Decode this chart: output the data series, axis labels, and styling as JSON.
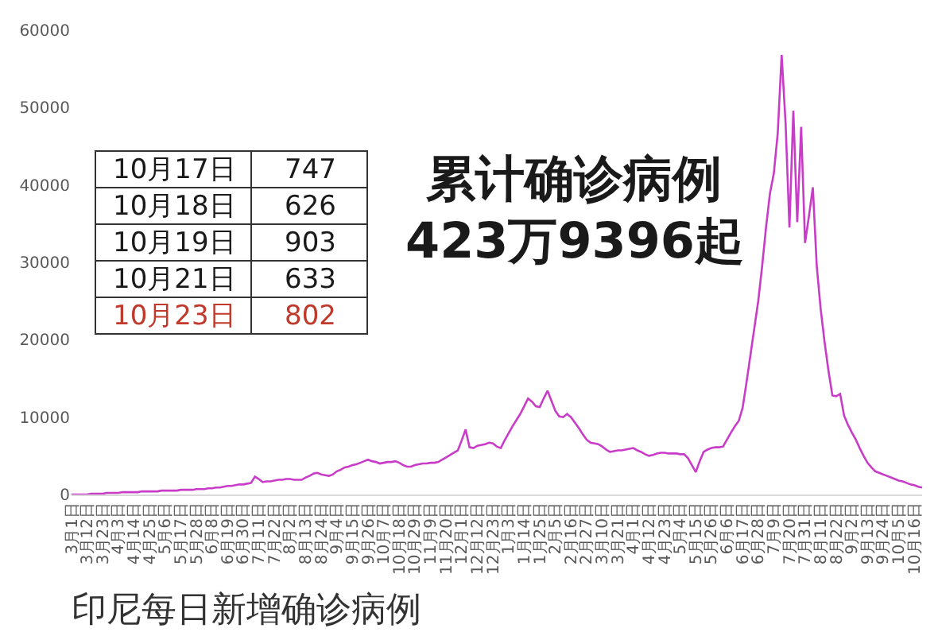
{
  "chart_data": {
    "type": "line",
    "title": "印尼每日新增确诊病例",
    "annotations": [
      "累计确诊病例",
      "423万9396起",
      "10月17日",
      "747",
      "10月18日",
      "626",
      "10月19日",
      "903",
      "10月21日",
      "633",
      "10月23日",
      "802"
    ],
    "categories": [
      "3月1日",
      null,
      null,
      null,
      "3月12日",
      null,
      null,
      null,
      "3月23日",
      null,
      null,
      null,
      "4月3日",
      null,
      null,
      null,
      "4月14日",
      null,
      null,
      null,
      "4月25日",
      null,
      null,
      null,
      "5月6日",
      null,
      null,
      null,
      "5月17日",
      null,
      null,
      null,
      "5月28日",
      null,
      null,
      null,
      "6月8日",
      null,
      null,
      null,
      "6月19日",
      null,
      null,
      null,
      "6月30日",
      null,
      null,
      null,
      "7月11日",
      null,
      null,
      null,
      "7月22日",
      null,
      null,
      null,
      "8月2日",
      null,
      null,
      null,
      "8月13日",
      null,
      null,
      null,
      "8月24日",
      null,
      null,
      null,
      "9月4日",
      null,
      null,
      null,
      "9月15日",
      null,
      null,
      null,
      "9月26日",
      null,
      null,
      null,
      "10月7日",
      null,
      null,
      null,
      "10月18日",
      null,
      null,
      null,
      "10月29日",
      null,
      null,
      null,
      "11月9日",
      null,
      null,
      null,
      "11月20日",
      null,
      null,
      null,
      "12月1日",
      null,
      null,
      null,
      "12月12日",
      null,
      null,
      null,
      "12月23日",
      null,
      null,
      null,
      "1月3日",
      null,
      null,
      null,
      "1月14日",
      null,
      null,
      null,
      "1月25日",
      null,
      null,
      null,
      "2月5日",
      null,
      null,
      null,
      "2月16日",
      null,
      null,
      null,
      "2月27日",
      null,
      null,
      null,
      "3月10日",
      null,
      null,
      null,
      "3月21日",
      null,
      null,
      null,
      "4月1日",
      null,
      null,
      null,
      "4月12日",
      null,
      null,
      null,
      "4月23日",
      null,
      null,
      null,
      "5月4日",
      null,
      null,
      null,
      "5月15日",
      null,
      null,
      null,
      "5月26日",
      null,
      null,
      null,
      "6月6日",
      null,
      null,
      null,
      "6月17日",
      null,
      null,
      null,
      "6月28日",
      null,
      null,
      null,
      "7月9日",
      null,
      null,
      null,
      "7月20日",
      null,
      null,
      null,
      "7月31日",
      null,
      null,
      null,
      "8月11日",
      null,
      null,
      null,
      "8月22日",
      null,
      null,
      null,
      "9月2日",
      null,
      null,
      null,
      "9月13日",
      null,
      null,
      null,
      "9月24日",
      null,
      null,
      null,
      "10月5日",
      null,
      null,
      null,
      "10月16日",
      null,
      null
    ],
    "series": [
      {
        "color": "#c83cc8",
        "values": [
          0,
          0,
          0,
          0,
          0,
          100,
          100,
          100,
          100,
          200,
          200,
          200,
          200,
          300,
          300,
          300,
          300,
          300,
          400,
          400,
          400,
          400,
          400,
          500,
          500,
          500,
          500,
          500,
          600,
          600,
          600,
          600,
          700,
          700,
          700,
          800,
          800,
          900,
          900,
          1000,
          1100,
          1100,
          1200,
          1300,
          1300,
          1400,
          1500,
          2300,
          2000,
          1600,
          1700,
          1700,
          1800,
          1900,
          1900,
          2000,
          2000,
          1900,
          1900,
          1900,
          2200,
          2400,
          2700,
          2800,
          2600,
          2500,
          2400,
          2600,
          3000,
          3200,
          3500,
          3600,
          3800,
          3900,
          4100,
          4300,
          4500,
          4300,
          4200,
          4000,
          4100,
          4200,
          4200,
          4300,
          4100,
          3800,
          3600,
          3600,
          3800,
          3900,
          4000,
          4000,
          4100,
          4100,
          4200,
          4500,
          4800,
          5100,
          5400,
          5700,
          7000,
          8400,
          6100,
          6000,
          6300,
          6400,
          6500,
          6700,
          6600,
          6200,
          6000,
          7000,
          7900,
          8800,
          9600,
          10400,
          11400,
          12400,
          12000,
          11400,
          11300,
          12400,
          13400,
          12100,
          10800,
          10100,
          10000,
          10400,
          10000,
          9300,
          8600,
          7800,
          7100,
          6700,
          6600,
          6500,
          6200,
          5800,
          5500,
          5600,
          5700,
          5700,
          5800,
          5900,
          6000,
          5700,
          5500,
          5200,
          5000,
          5100,
          5300,
          5400,
          5400,
          5300,
          5300,
          5300,
          5200,
          5200,
          4700,
          3800,
          2900,
          4300,
          5500,
          5800,
          6000,
          6100,
          6100,
          6200,
          7100,
          8000,
          8800,
          9500,
          11200,
          14500,
          18000,
          21500,
          25000,
          29500,
          34500,
          38900,
          41500,
          46700,
          56800,
          48100,
          34500,
          49600,
          35200,
          47500,
          32500,
          36000,
          39700,
          29500,
          24000,
          19700,
          16000,
          12800,
          12700,
          13000,
          10200,
          9000,
          8000,
          7100,
          6000,
          5000,
          4100,
          3500,
          3000,
          2800,
          2600,
          2400,
          2200,
          2000,
          1800,
          1700,
          1500,
          1300,
          1200,
          1000,
          900
        ]
      }
    ],
    "ylim": [
      0,
      60000
    ],
    "yticks": [
      0,
      10000,
      20000,
      30000,
      40000,
      50000,
      60000
    ]
  }
}
